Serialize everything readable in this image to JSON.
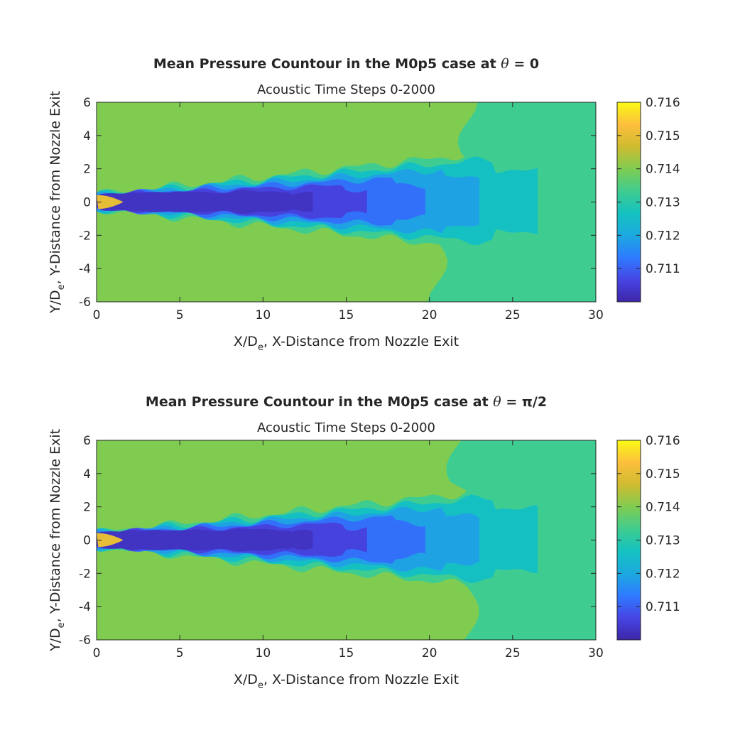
{
  "chart_data": [
    {
      "type": "heatmap",
      "title_prefix": "Mean Pressure Countour in the M0p5 case at ",
      "title_symbol": "θ",
      "title_suffix": " = 0",
      "subtitle": "Acoustic Time Steps 0-2000",
      "xlabel_pre": "X/D",
      "xlabel_sub": "e",
      "xlabel_post": ", X-Distance from Nozzle Exit",
      "ylabel_pre": "Y/D",
      "ylabel_sub": "e",
      "ylabel_post": ",  Y-Distance from Nozzle Exit",
      "xlim": [
        0,
        30
      ],
      "ylim": [
        -6,
        6
      ],
      "xticks": [
        "0",
        "5",
        "10",
        "15",
        "20",
        "25",
        "30"
      ],
      "yticks": [
        "-6",
        "-4",
        "-2",
        "0",
        "2",
        "4",
        "6"
      ],
      "colorbar": {
        "range": [
          0.71,
          0.716
        ],
        "ticks": [
          "0.711",
          "0.712",
          "0.713",
          "0.714",
          "0.715",
          "0.716"
        ]
      },
      "field": {
        "ambient_level": 0.714,
        "far_field_level": 0.7133,
        "far_field_boundary_x": 20.5,
        "potential_core_level": 0.715,
        "potential_core_length": 1.6,
        "shear_layer_min": 0.7103
      }
    },
    {
      "type": "heatmap",
      "title_prefix": "Mean Pressure Countour in the M0p5 case at ",
      "title_symbol": "θ",
      "title_suffix": " = π/2",
      "subtitle": "Acoustic Time Steps 0-2000",
      "xlabel_pre": "X/D",
      "xlabel_sub": "e",
      "xlabel_post": ", X-Distance from Nozzle Exit",
      "ylabel_pre": "Y/D",
      "ylabel_sub": "e",
      "ylabel_post": ",  Y-Distance from Nozzle Exit",
      "xlim": [
        0,
        30
      ],
      "ylim": [
        -6,
        6
      ],
      "xticks": [
        "0",
        "5",
        "10",
        "15",
        "20",
        "25",
        "30"
      ],
      "yticks": [
        "-6",
        "-4",
        "-2",
        "0",
        "2",
        "4",
        "6"
      ],
      "colorbar": {
        "range": [
          0.71,
          0.716
        ],
        "ticks": [
          "0.711",
          "0.712",
          "0.713",
          "0.714",
          "0.715",
          "0.716"
        ]
      },
      "field": {
        "ambient_level": 0.714,
        "far_field_level": 0.7133,
        "far_field_boundary_x": 22.3,
        "potential_core_level": 0.715,
        "potential_core_length": 1.6,
        "shear_layer_min": 0.7103
      }
    }
  ],
  "colormap": [
    "#3e26a8",
    "#4745e4",
    "#2e7bff",
    "#1ca9df",
    "#14c2c0",
    "#40cc8f",
    "#80cc51",
    "#cfbb30",
    "#fdbf3d",
    "#f9fa14"
  ]
}
